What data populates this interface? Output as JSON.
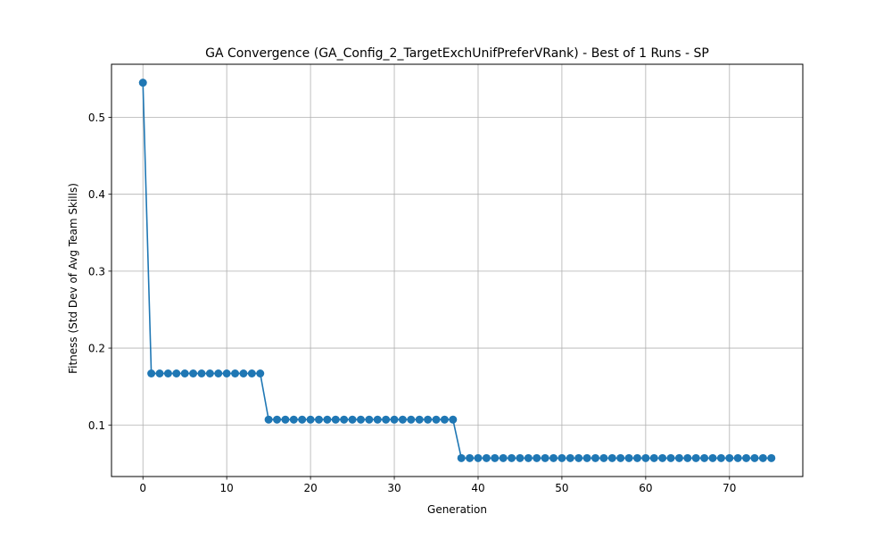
{
  "chart_data": {
    "type": "line",
    "title": "GA Convergence (GA_Config_2_TargetExchUnifPreferVRank) - Best of 1 Runs - SP",
    "xlabel": "Generation",
    "ylabel": "Fitness (Std Dev of Avg Team Skills)",
    "xlim": [
      -3.75,
      78.75
    ],
    "ylim": [
      0.033,
      0.569
    ],
    "grid": true,
    "marker": "circle",
    "line_color": "#1f77b4",
    "x_ticks": [
      0,
      10,
      20,
      30,
      40,
      50,
      60,
      70
    ],
    "y_ticks": [
      0.1,
      0.2,
      0.3,
      0.4,
      0.5
    ],
    "series": [
      {
        "x": [
          0,
          1,
          2,
          3,
          4,
          5,
          6,
          7,
          8,
          9,
          10,
          11,
          12,
          13,
          14,
          15,
          16,
          17,
          18,
          19,
          20,
          21,
          22,
          23,
          24,
          25,
          26,
          27,
          28,
          29,
          30,
          31,
          32,
          33,
          34,
          35,
          36,
          37,
          38,
          39,
          40,
          41,
          42,
          43,
          44,
          45,
          46,
          47,
          48,
          49,
          50,
          51,
          52,
          53,
          54,
          55,
          56,
          57,
          58,
          59,
          60,
          61,
          62,
          63,
          64,
          65,
          66,
          67,
          68,
          69,
          70,
          71,
          72,
          73,
          74,
          75
        ],
        "y": [
          0.545,
          0.167,
          0.167,
          0.167,
          0.167,
          0.167,
          0.167,
          0.167,
          0.167,
          0.167,
          0.167,
          0.167,
          0.167,
          0.167,
          0.167,
          0.107,
          0.107,
          0.107,
          0.107,
          0.107,
          0.107,
          0.107,
          0.107,
          0.107,
          0.107,
          0.107,
          0.107,
          0.107,
          0.107,
          0.107,
          0.107,
          0.107,
          0.107,
          0.107,
          0.107,
          0.107,
          0.107,
          0.107,
          0.057,
          0.057,
          0.057,
          0.057,
          0.057,
          0.057,
          0.057,
          0.057,
          0.057,
          0.057,
          0.057,
          0.057,
          0.057,
          0.057,
          0.057,
          0.057,
          0.057,
          0.057,
          0.057,
          0.057,
          0.057,
          0.057,
          0.057,
          0.057,
          0.057,
          0.057,
          0.057,
          0.057,
          0.057,
          0.057,
          0.057,
          0.057,
          0.057,
          0.057,
          0.057,
          0.057,
          0.057,
          0.057
        ]
      }
    ]
  }
}
